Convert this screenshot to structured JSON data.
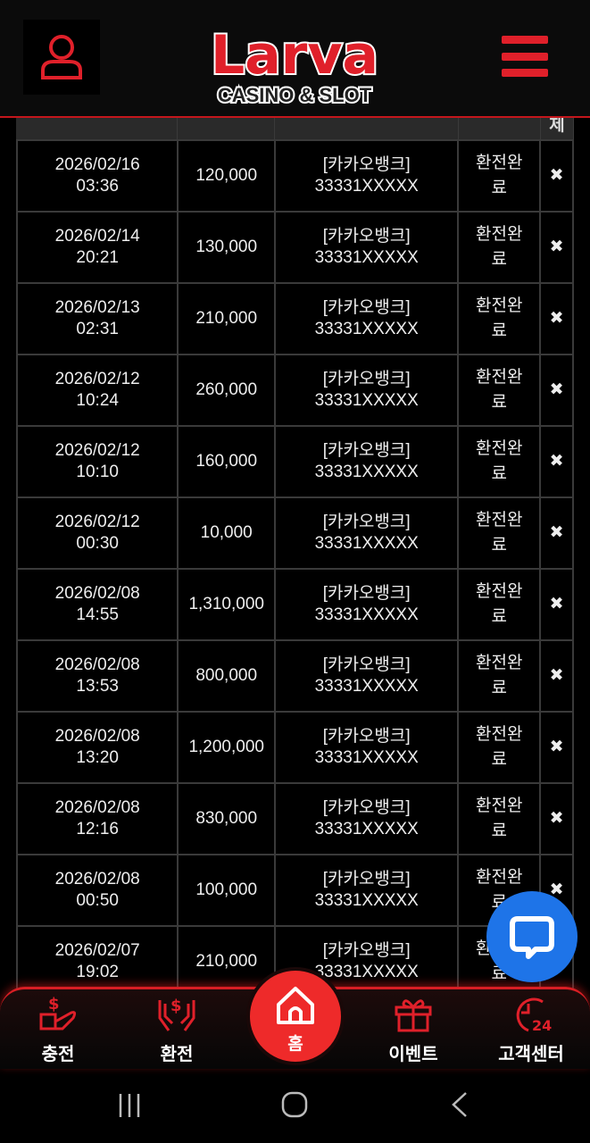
{
  "header": {
    "logo_text": "Larva",
    "logo_subtitle": "CASINO & SLOT"
  },
  "table": {
    "header_visible": [
      "",
      "",
      "",
      "",
      "제"
    ],
    "rows": [
      {
        "date": "2026/02/16",
        "time": "03:36",
        "amount": "120,000",
        "bank": "[카카오뱅크]",
        "account": "33331XXXXX",
        "status": "환전완료"
      },
      {
        "date": "2026/02/14",
        "time": "20:21",
        "amount": "130,000",
        "bank": "[카카오뱅크]",
        "account": "33331XXXXX",
        "status": "환전완료"
      },
      {
        "date": "2026/02/13",
        "time": "02:31",
        "amount": "210,000",
        "bank": "[카카오뱅크]",
        "account": "33331XXXXX",
        "status": "환전완료"
      },
      {
        "date": "2026/02/12",
        "time": "10:24",
        "amount": "260,000",
        "bank": "[카카오뱅크]",
        "account": "33331XXXXX",
        "status": "환전완료"
      },
      {
        "date": "2026/02/12",
        "time": "10:10",
        "amount": "160,000",
        "bank": "[카카오뱅크]",
        "account": "33331XXXXX",
        "status": "환전완료"
      },
      {
        "date": "2026/02/12",
        "time": "00:30",
        "amount": "10,000",
        "bank": "[카카오뱅크]",
        "account": "33331XXXXX",
        "status": "환전완료"
      },
      {
        "date": "2026/02/08",
        "time": "14:55",
        "amount": "1,310,000",
        "bank": "[카카오뱅크]",
        "account": "33331XXXXX",
        "status": "환전완료"
      },
      {
        "date": "2026/02/08",
        "time": "13:53",
        "amount": "800,000",
        "bank": "[카카오뱅크]",
        "account": "33331XXXXX",
        "status": "환전완료"
      },
      {
        "date": "2026/02/08",
        "time": "13:20",
        "amount": "1,200,000",
        "bank": "[카카오뱅크]",
        "account": "33331XXXXX",
        "status": "환전완료"
      },
      {
        "date": "2026/02/08",
        "time": "12:16",
        "amount": "830,000",
        "bank": "[카카오뱅크]",
        "account": "33331XXXXX",
        "status": "환전완료"
      },
      {
        "date": "2026/02/08",
        "time": "00:50",
        "amount": "100,000",
        "bank": "[카카오뱅크]",
        "account": "33331XXXXX",
        "status": "환전완료"
      },
      {
        "date": "2026/02/07",
        "time": "19:02",
        "amount": "210,000",
        "bank": "[카카오뱅크]",
        "account": "33331XXXXX",
        "status": "환전완료"
      }
    ],
    "delete_icon": "✖"
  },
  "bottom_nav": {
    "charge": "충전",
    "exchange": "환전",
    "home": "홈",
    "event": "이벤트",
    "support": "고객센터"
  },
  "colors": {
    "accent": "#e0202a",
    "link": "#5da8e0",
    "chat": "#1e74e8"
  }
}
